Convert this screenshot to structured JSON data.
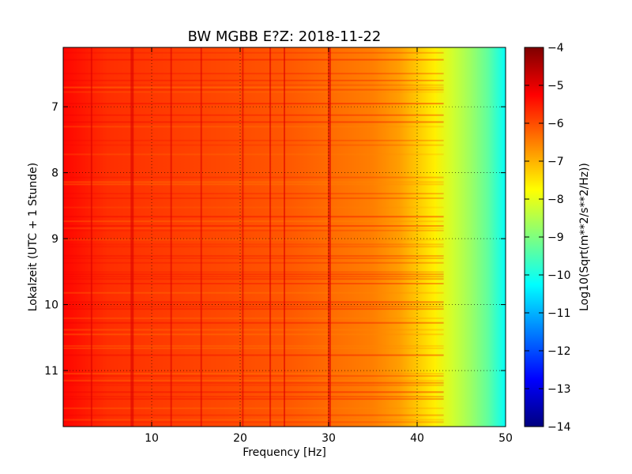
{
  "chart_data": {
    "type": "heatmap",
    "title": "BW MGBB E?Z: 2018-11-22",
    "xlabel": "Frequency [Hz]",
    "ylabel": "Lokalzeit (UTC + 1 Stunde)",
    "xlim": [
      0,
      50
    ],
    "ylim_inverted": [
      6.1,
      11.85
    ],
    "x_ticks": [
      10,
      20,
      30,
      40,
      50
    ],
    "y_ticks": [
      7,
      8,
      9,
      10,
      11
    ],
    "grid": true,
    "colorbar": {
      "label": "Log10(Sqrt(m**2/s**2/Hz))",
      "min": -14,
      "max": -4,
      "ticks": [
        -4,
        -5,
        -6,
        -7,
        -8,
        -9,
        -10,
        -11,
        -12,
        -13,
        -14
      ],
      "colormap": "jet"
    },
    "spectral_profile": {
      "frequency_hz": [
        0,
        5,
        10,
        15,
        20,
        25,
        30,
        35,
        38,
        40,
        42,
        44,
        46,
        48,
        50
      ],
      "log10_amplitude": [
        -5.3,
        -5.7,
        -5.8,
        -5.9,
        -6.0,
        -6.1,
        -6.3,
        -6.5,
        -6.8,
        -7.2,
        -7.6,
        -8.2,
        -8.7,
        -9.3,
        -10.2
      ]
    },
    "spectral_lines_hz": [
      3.2,
      7.7,
      12.2,
      15.6,
      20.3,
      23.4,
      25.0,
      30.0
    ]
  },
  "colors": {
    "jet": [
      "#00007f",
      "#0000ff",
      "#007fff",
      "#00ffff",
      "#7fff7f",
      "#ffff00",
      "#ff7f00",
      "#ff0000",
      "#7f0000"
    ]
  }
}
